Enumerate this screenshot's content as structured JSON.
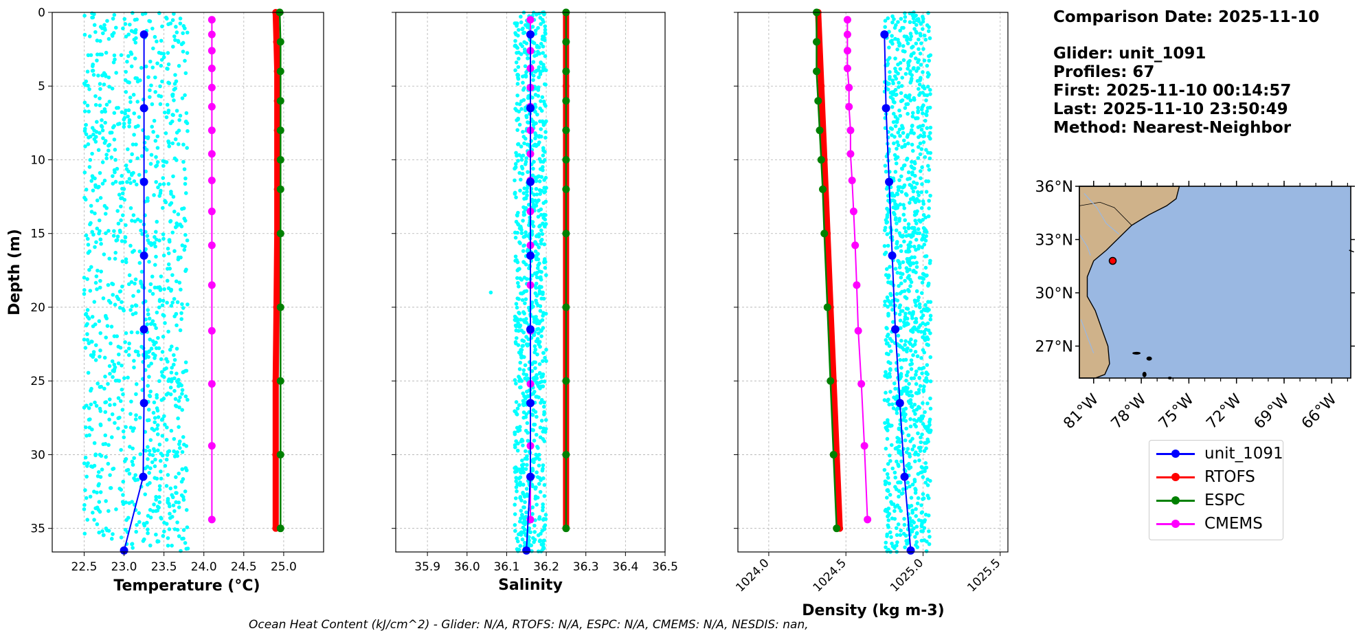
{
  "info": {
    "comparison_date": "Comparison Date: 2025-11-10",
    "glider": "Glider: unit_1091",
    "profiles": "Profiles: 67",
    "first": "First: 2025-11-10 00:14:57",
    "last": "Last: 2025-11-10 23:50:49",
    "method": "Method: Nearest-Neighbor"
  },
  "footer": "Ocean Heat Content (kJ/cm^2) - Glider: N/A,  RTOFS: N/A,  ESPC: N/A,  CMEMS: N/A,  NESDIS: nan,",
  "legend": [
    {
      "name": "unit_1091",
      "color": "#0000ff"
    },
    {
      "name": "RTOFS",
      "color": "#ff0000"
    },
    {
      "name": "ESPC",
      "color": "#008000"
    },
    {
      "name": "CMEMS",
      "color": "#ff00ff"
    }
  ],
  "colors": {
    "scatter": "#00ffff",
    "glider": "#0000ff",
    "rtofs": "#ff0000",
    "espc": "#008000",
    "cmems": "#ff00ff",
    "land": "#cfb28a",
    "ocean": "#9ab8e2"
  },
  "chart_data": [
    {
      "type": "line",
      "xlabel": "Temperature (°C)",
      "ylabel": "Depth (m)",
      "xlim": [
        22.1,
        25.5
      ],
      "ylim": [
        36.6,
        0
      ],
      "xticks": [
        "22.5",
        "23.0",
        "23.5",
        "24.0",
        "24.5",
        "25.0"
      ],
      "yticks": [
        "0",
        "5",
        "10",
        "15",
        "20",
        "25",
        "30",
        "35"
      ],
      "grid": true,
      "scatter": {
        "x_range": [
          22.5,
          23.8
        ],
        "depth_range": [
          0,
          36.6
        ]
      },
      "series": [
        {
          "name": "unit_1091",
          "depth": [
            1.5,
            6.5,
            11.5,
            16.5,
            21.5,
            26.5,
            31.5,
            36.5
          ],
          "values": [
            23.25,
            23.25,
            23.25,
            23.25,
            23.25,
            23.25,
            23.24,
            23.0
          ]
        },
        {
          "name": "RTOFS",
          "depth": [
            0,
            2,
            4,
            6,
            8,
            10,
            12,
            15,
            20,
            25,
            30,
            35
          ],
          "values": [
            24.9,
            24.91,
            24.92,
            24.92,
            24.92,
            24.92,
            24.92,
            24.92,
            24.91,
            24.9,
            24.9,
            24.9
          ]
        },
        {
          "name": "ESPC",
          "depth": [
            0,
            2,
            4,
            6,
            8,
            10,
            12,
            15,
            20,
            25,
            30,
            35
          ],
          "values": [
            24.95,
            24.96,
            24.96,
            24.96,
            24.96,
            24.96,
            24.96,
            24.96,
            24.96,
            24.96,
            24.96,
            24.96
          ]
        },
        {
          "name": "CMEMS",
          "depth": [
            0.5,
            1.5,
            2.6,
            3.8,
            5.1,
            6.4,
            8.0,
            9.6,
            11.4,
            13.5,
            15.8,
            18.5,
            21.6,
            25.2,
            29.4,
            34.4
          ],
          "values": [
            24.1,
            24.1,
            24.1,
            24.1,
            24.1,
            24.1,
            24.1,
            24.1,
            24.1,
            24.1,
            24.1,
            24.1,
            24.1,
            24.1,
            24.1,
            24.1
          ]
        }
      ]
    },
    {
      "type": "line",
      "xlabel": "Salinity",
      "xlim": [
        35.82,
        36.5
      ],
      "ylim": [
        36.6,
        0
      ],
      "xticks": [
        "35.9",
        "36.0",
        "36.1",
        "36.2",
        "36.3",
        "36.4",
        "36.5"
      ],
      "grid": true,
      "scatter": {
        "x_range": [
          36.12,
          36.2
        ],
        "depth_range": [
          0,
          36.6
        ],
        "outlier": [
          36.06,
          19
        ]
      },
      "series": [
        {
          "name": "unit_1091",
          "depth": [
            1.5,
            6.5,
            11.5,
            16.5,
            21.5,
            26.5,
            31.5,
            36.5
          ],
          "values": [
            36.16,
            36.16,
            36.16,
            36.16,
            36.16,
            36.16,
            36.16,
            36.15
          ]
        },
        {
          "name": "RTOFS",
          "depth": [
            0,
            5,
            10,
            15,
            20,
            25,
            30,
            35
          ],
          "values": [
            36.25,
            36.25,
            36.25,
            36.25,
            36.25,
            36.25,
            36.25,
            36.25
          ]
        },
        {
          "name": "ESPC",
          "depth": [
            0,
            2,
            4,
            6,
            8,
            10,
            12,
            15,
            20,
            25,
            30,
            35
          ],
          "values": [
            36.25,
            36.25,
            36.25,
            36.25,
            36.25,
            36.25,
            36.25,
            36.25,
            36.25,
            36.25,
            36.25,
            36.25
          ]
        },
        {
          "name": "CMEMS",
          "depth": [
            0.5,
            1.5,
            2.6,
            3.8,
            5.1,
            6.4,
            8.0,
            9.6,
            11.4,
            13.5,
            15.8,
            18.5,
            21.6,
            25.2,
            29.4,
            34.4
          ],
          "values": [
            36.16,
            36.16,
            36.16,
            36.16,
            36.16,
            36.16,
            36.16,
            36.16,
            36.16,
            36.16,
            36.16,
            36.16,
            36.16,
            36.16,
            36.16,
            36.16
          ]
        }
      ]
    },
    {
      "type": "line",
      "xlabel": "Density (kg m-3)",
      "xlim": [
        1023.8,
        1025.55
      ],
      "ylim": [
        36.6,
        0
      ],
      "xticks": [
        "1024.0",
        "1024.5",
        "1025.0",
        "1025.5"
      ],
      "grid": true,
      "scatter": {
        "x_range": [
          1024.75,
          1025.05
        ],
        "depth_range": [
          0,
          36.6
        ]
      },
      "series": [
        {
          "name": "unit_1091",
          "depth": [
            1.5,
            6.5,
            11.5,
            16.5,
            21.5,
            26.5,
            31.5,
            36.5
          ],
          "values": [
            1024.75,
            1024.76,
            1024.78,
            1024.8,
            1024.82,
            1024.85,
            1024.88,
            1024.92
          ]
        },
        {
          "name": "RTOFS",
          "depth": [
            0,
            5,
            10,
            15,
            20,
            25,
            30,
            35
          ],
          "values": [
            1024.32,
            1024.34,
            1024.36,
            1024.38,
            1024.4,
            1024.42,
            1024.44,
            1024.46
          ]
        },
        {
          "name": "ESPC",
          "depth": [
            0,
            2,
            4,
            6,
            8,
            10,
            12,
            15,
            20,
            25,
            30,
            35
          ],
          "values": [
            1024.31,
            1024.31,
            1024.31,
            1024.32,
            1024.33,
            1024.34,
            1024.35,
            1024.36,
            1024.38,
            1024.4,
            1024.42,
            1024.44
          ]
        },
        {
          "name": "CMEMS",
          "depth": [
            0.5,
            1.5,
            2.6,
            3.8,
            5.1,
            6.4,
            8.0,
            9.6,
            11.4,
            13.5,
            15.8,
            18.5,
            21.6,
            25.2,
            29.4,
            34.4
          ],
          "values": [
            1024.51,
            1024.51,
            1024.51,
            1024.51,
            1024.52,
            1024.52,
            1024.53,
            1024.53,
            1024.54,
            1024.55,
            1024.56,
            1024.57,
            1024.58,
            1024.6,
            1024.62,
            1024.64
          ]
        }
      ]
    },
    {
      "type": "map",
      "lat_ticks": [
        "36°N",
        "33°N",
        "30°N",
        "27°N"
      ],
      "lon_ticks": [
        "81°W",
        "78°W",
        "75°W",
        "72°W",
        "69°W",
        "66°W"
      ],
      "lat_range": [
        25.2,
        36.0
      ],
      "lon_range": [
        -81.9,
        -64.8
      ],
      "marker": {
        "lon": -79.8,
        "lat": 31.8
      }
    }
  ]
}
